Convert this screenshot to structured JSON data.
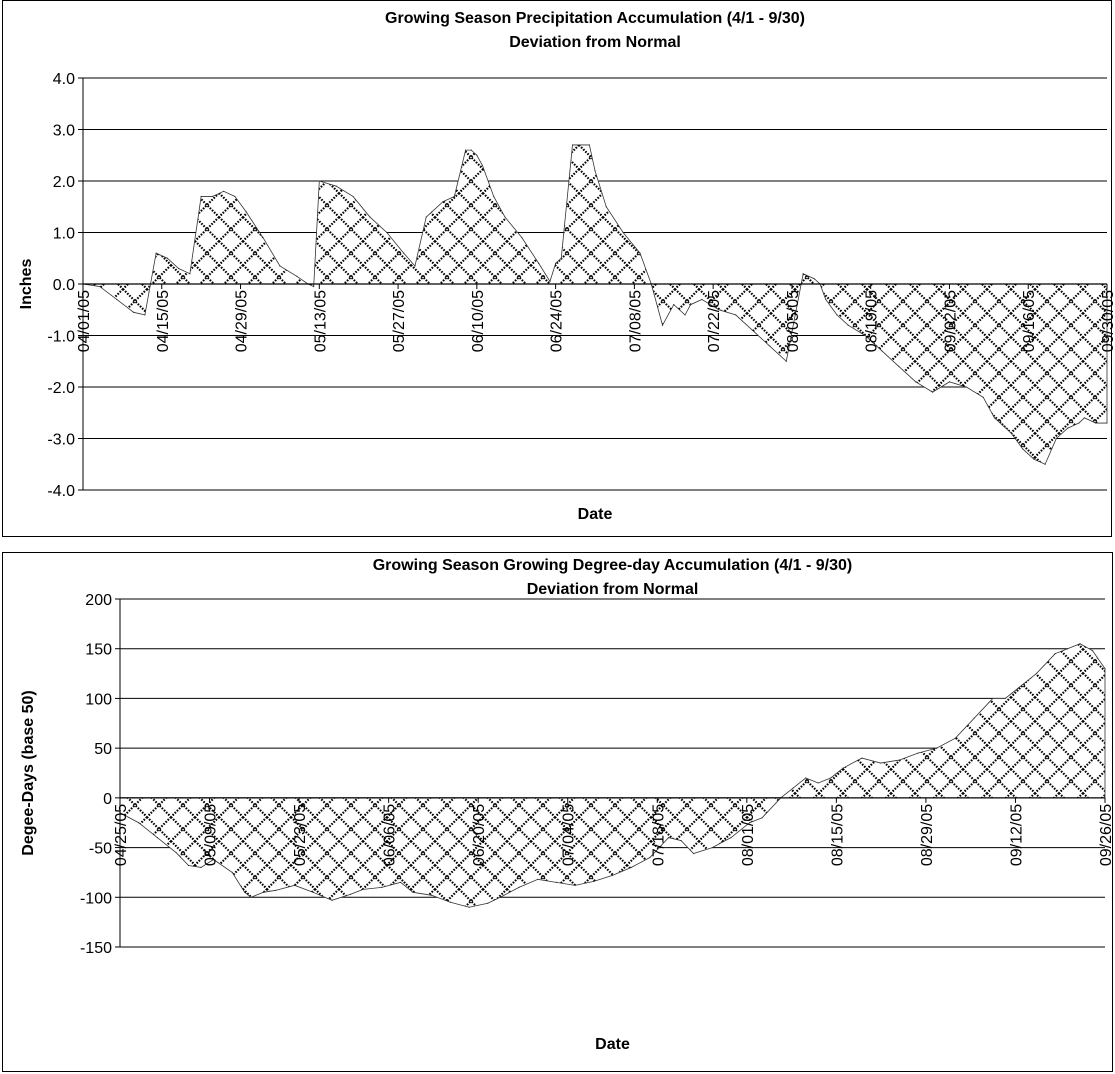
{
  "chart_data": [
    {
      "type": "area",
      "title": "Growing Season Precipitation Accumulation (4/1 - 9/30)",
      "subtitle": "Deviation from Normal",
      "xlabel": "Date",
      "ylabel": "Inches",
      "ylim": [
        -4.0,
        4.0
      ],
      "xlim": [
        "04/01/05",
        "09/30/05"
      ],
      "yticks": [
        -4.0,
        -3.0,
        -2.0,
        -1.0,
        0.0,
        1.0,
        2.0,
        3.0,
        4.0
      ],
      "ytick_labels": [
        "-4.0",
        "-3.0",
        "-2.0",
        "-1.0",
        "0.0",
        "1.0",
        "2.0",
        "3.0",
        "4.0"
      ],
      "xtick_labels": [
        "04/01/05",
        "04/15/05",
        "04/29/05",
        "05/13/05",
        "05/27/05",
        "06/10/05",
        "06/24/05",
        "07/08/05",
        "07/22/05",
        "08/05/05",
        "08/19/05",
        "09/02/05",
        "09/16/05",
        "09/30/05"
      ],
      "grid": "horizontal",
      "fill": "crosshatch",
      "x": [
        "04/01/05",
        "04/04/05",
        "04/07/05",
        "04/10/05",
        "04/12/05",
        "04/14/05",
        "04/16/05",
        "04/18/05",
        "04/20/05",
        "04/22/05",
        "04/24/05",
        "04/26/05",
        "04/28/05",
        "04/30/05",
        "05/03/05",
        "05/06/05",
        "05/09/05",
        "05/11/05",
        "05/12/05",
        "05/13/05",
        "05/16/05",
        "05/19/05",
        "05/22/05",
        "05/25/05",
        "05/28/05",
        "05/30/05",
        "06/01/05",
        "06/02/05",
        "06/04/05",
        "06/06/05",
        "06/08/05",
        "06/09/05",
        "06/10/05",
        "06/11/05",
        "06/13/05",
        "06/15/05",
        "06/18/05",
        "06/21/05",
        "06/23/05",
        "06/24/05",
        "06/25/05",
        "06/27/05",
        "06/30/05",
        "07/01/05",
        "07/03/05",
        "07/06/05",
        "07/09/05",
        "07/11/05",
        "07/13/05",
        "07/15/05",
        "07/17/05",
        "07/18/05",
        "07/20/05",
        "07/23/05",
        "07/26/05",
        "07/29/05",
        "08/01/05",
        "08/04/05",
        "08/07/05",
        "08/09/05",
        "08/10/05",
        "08/11/05",
        "08/13/05",
        "08/15/05",
        "08/18/05",
        "08/21/05",
        "08/24/05",
        "08/27/05",
        "08/30/05",
        "09/02/05",
        "09/05/05",
        "09/08/05",
        "09/10/05",
        "09/13/05",
        "09/15/05",
        "09/17/05",
        "09/19/05",
        "09/21/05",
        "09/23/05",
        "09/25/05",
        "09/26/05",
        "09/28/05",
        "09/30/05"
      ],
      "values": [
        0.0,
        -0.05,
        -0.3,
        -0.55,
        -0.6,
        0.6,
        0.5,
        0.3,
        0.2,
        1.7,
        1.7,
        1.8,
        1.7,
        1.4,
        0.9,
        0.35,
        0.15,
        0.0,
        -0.05,
        2.0,
        1.9,
        1.7,
        1.3,
        1.0,
        0.6,
        0.35,
        1.3,
        1.4,
        1.6,
        1.7,
        2.6,
        2.6,
        2.5,
        2.3,
        1.7,
        1.3,
        0.9,
        0.4,
        0.05,
        0.4,
        0.5,
        2.7,
        2.7,
        2.2,
        1.5,
        1.0,
        0.6,
        0.0,
        -0.8,
        -0.4,
        -0.6,
        -0.4,
        -0.3,
        -0.5,
        -0.6,
        -0.9,
        -1.2,
        -1.5,
        0.2,
        0.1,
        0.0,
        -0.3,
        -0.6,
        -0.8,
        -1.0,
        -1.3,
        -1.6,
        -1.9,
        -2.1,
        -1.9,
        -2.0,
        -2.2,
        -2.6,
        -2.9,
        -3.2,
        -3.4,
        -3.5,
        -3.0,
        -2.8,
        -2.7,
        -2.6,
        -2.7,
        -2.7
      ]
    },
    {
      "type": "area",
      "title": "Growing Season Growing Degree-day Accumulation (4/1 - 9/30)",
      "subtitle": "Deviation from Normal",
      "xlabel": "Date",
      "ylabel": "Degee-Days (base 50)",
      "ylim": [
        -150,
        200
      ],
      "xlim": [
        "04/25/05",
        "09/30/05"
      ],
      "yticks": [
        -150,
        -100,
        -50,
        0,
        50,
        100,
        150,
        200
      ],
      "ytick_labels": [
        "-150",
        "-100",
        "-50",
        "0",
        "50",
        "100",
        "150",
        "200"
      ],
      "xtick_labels": [
        "04/25/05",
        "05/09/05",
        "05/23/05",
        "06/06/05",
        "06/20/05",
        "07/04/05",
        "07/18/05",
        "08/01/05",
        "08/15/05",
        "08/29/05",
        "09/12/05",
        "09/26/05"
      ],
      "grid": "horizontal",
      "fill": "crosshatch",
      "x": [
        "04/25/05",
        "04/28/05",
        "05/01/05",
        "05/04/05",
        "05/06/05",
        "05/08/05",
        "05/10/05",
        "05/13/05",
        "05/15/05",
        "05/16/05",
        "05/18/05",
        "05/20/05",
        "05/23/05",
        "05/26/05",
        "05/29/05",
        "06/01/05",
        "06/03/05",
        "06/06/05",
        "06/09/05",
        "06/11/05",
        "06/14/05",
        "06/17/05",
        "06/20/05",
        "06/23/05",
        "06/25/05",
        "06/28/05",
        "07/01/05",
        "07/04/05",
        "07/07/05",
        "07/10/05",
        "07/13/05",
        "07/16/05",
        "07/19/05",
        "07/22/05",
        "07/24/05",
        "07/26/05",
        "07/29/05",
        "08/01/05",
        "08/04/05",
        "08/06/05",
        "08/09/05",
        "08/11/05",
        "08/13/05",
        "08/15/05",
        "08/17/05",
        "08/19/05",
        "08/22/05",
        "08/25/05",
        "08/28/05",
        "08/31/05",
        "09/03/05",
        "09/06/05",
        "09/09/05",
        "09/12/05",
        "09/14/05",
        "09/16/05",
        "09/19/05",
        "09/22/05",
        "09/24/05",
        "09/26/05",
        "09/28/05",
        "09/30/05"
      ],
      "values": [
        -15,
        -25,
        -40,
        -55,
        -68,
        -70,
        -62,
        -75,
        -95,
        -100,
        -95,
        -93,
        -88,
        -95,
        -103,
        -97,
        -92,
        -90,
        -85,
        -95,
        -98,
        -105,
        -110,
        -106,
        -100,
        -90,
        -82,
        -85,
        -88,
        -84,
        -78,
        -70,
        -60,
        -40,
        -43,
        -56,
        -50,
        -40,
        -25,
        -20,
        0,
        10,
        20,
        15,
        20,
        30,
        40,
        35,
        38,
        45,
        50,
        60,
        80,
        100,
        100,
        110,
        125,
        145,
        150,
        155,
        148,
        130
      ]
    }
  ]
}
